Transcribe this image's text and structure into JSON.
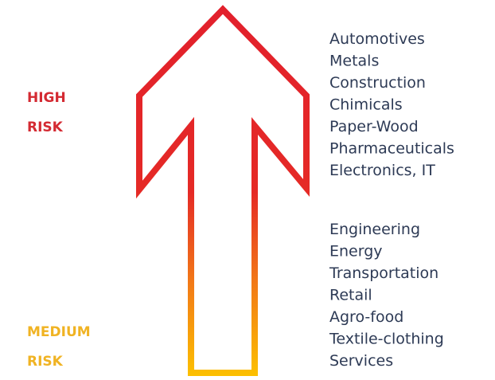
{
  "high_risk": {
    "lines": [
      "HIGH",
      "RISK"
    ],
    "sectors": [
      "Automotives",
      "Metals",
      "Construction",
      "Chimicals",
      "Paper-Wood",
      "Pharmaceuticals",
      "Electronics, IT"
    ]
  },
  "medium_risk": {
    "lines": [
      "MEDIUM",
      "RISK"
    ],
    "sectors": [
      "Engineering",
      "Energy",
      "Transportation",
      "Retail",
      "Agro-food",
      "Textile-clothing",
      "Services"
    ]
  }
}
